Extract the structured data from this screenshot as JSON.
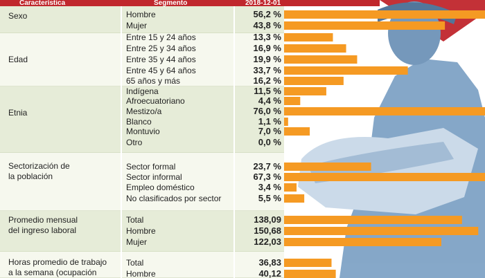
{
  "header": {
    "col_characteristic": "Característica",
    "col_segment": "Segmento",
    "col_date": "2018-12-01"
  },
  "colors": {
    "header_bg": "#c0272d",
    "band_odd": "#e6ecd8",
    "band_even": "#f6f8ee",
    "bar": "#f59a23",
    "divider": "#c8d2b2",
    "photo_figure": "#7fa3c6"
  },
  "groups": [
    {
      "label_lines": [
        "Sexo"
      ],
      "row_start": 0,
      "row_count": 2
    },
    {
      "label_lines": [
        "Edad"
      ],
      "row_start": 2,
      "row_count": 5
    },
    {
      "label_lines": [
        "Etnia"
      ],
      "row_start": 7,
      "row_count": 6
    },
    {
      "label_lines": [
        "Sectorización de",
        "la población"
      ],
      "row_start": 13,
      "row_count": 4
    },
    {
      "label_lines": [
        "Promedio mensual",
        "del ingreso laboral"
      ],
      "row_start": 17,
      "row_count": 3
    },
    {
      "label_lines": [
        "Horas promedio de trabajo",
        "a la semana (ocupación"
      ],
      "row_start": 20,
      "row_count": 2
    }
  ],
  "chart_data": {
    "type": "bar",
    "title": "",
    "sections": [
      {
        "name": "Sexo",
        "unit": "%",
        "categories": [
          "Hombre",
          "Mujer"
        ],
        "values": [
          56.2,
          43.8
        ],
        "labels": [
          "56,2 %",
          "43,8 %"
        ]
      },
      {
        "name": "Edad",
        "unit": "%",
        "categories": [
          "Entre 15 y 24 años",
          "Entre 25 y 34 años",
          "Entre 35 y 44 años",
          "Entre 45 y 64 años",
          "65 años y más"
        ],
        "values": [
          13.3,
          16.9,
          19.9,
          33.7,
          16.2
        ],
        "labels": [
          "13,3 %",
          "16,9 %",
          "19,9 %",
          "33,7 %",
          "16,2 %"
        ]
      },
      {
        "name": "Etnia",
        "unit": "%",
        "categories": [
          "Indígena",
          "Afroecuatoriano",
          "Mestizo/a",
          "Blanco",
          "Montuvio",
          "Otro"
        ],
        "values": [
          11.5,
          4.4,
          76.0,
          1.1,
          7.0,
          0.0
        ],
        "labels": [
          "11,5 %",
          "4,4 %",
          "76,0 %",
          "1,1 %",
          "7,0 %",
          "0,0 %"
        ]
      },
      {
        "name": "Sectorización de la población",
        "unit": "%",
        "categories": [
          "Sector formal",
          "Sector informal",
          "Empleo doméstico",
          "No clasificados por sector"
        ],
        "values": [
          23.7,
          67.3,
          3.4,
          5.5
        ],
        "labels": [
          "23,7 %",
          "67,3 %",
          "3,4 %",
          "5,5 %"
        ]
      },
      {
        "name": "Promedio mensual del ingreso laboral",
        "unit": "",
        "categories": [
          "Total",
          "Hombre",
          "Mujer"
        ],
        "values": [
          138.09,
          150.68,
          122.03
        ],
        "labels": [
          "138,09",
          "150,68",
          "122,03"
        ]
      },
      {
        "name": "Horas promedio de trabajo a la semana (ocupación",
        "unit": "",
        "categories": [
          "Total",
          "Hombre"
        ],
        "values": [
          36.83,
          40.12
        ],
        "labels": [
          "36,83",
          "40,12"
        ]
      }
    ]
  }
}
